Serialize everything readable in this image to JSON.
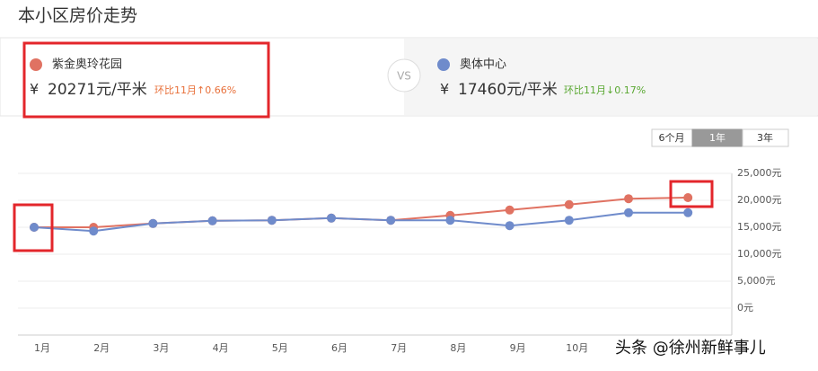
{
  "header": {
    "title": "本小区房价走势"
  },
  "compare": {
    "vs": "VS",
    "items": [
      {
        "currency": "¥",
        "price": "20271元/平米",
        "change": "环比11月↑0.66%"
      },
      {
        "currency": "¥",
        "price": "17460元/平米",
        "change": "环比11月↓0.17%"
      }
    ]
  },
  "range_buttons": [
    "6个月",
    "1年",
    "3年"
  ],
  "watermark": "头条 @徐州新鲜事儿",
  "chart_data": {
    "type": "line",
    "categories": [
      "1月",
      "2月",
      "3月",
      "4月",
      "5月",
      "6月",
      "7月",
      "8月",
      "9月",
      "10月",
      null,
      null
    ],
    "series": [
      {
        "name": "紫金奥玲花园",
        "color": "#e07262",
        "values": [
          15000,
          15000,
          15700,
          16200,
          16300,
          16700,
          16300,
          17200,
          18200,
          19200,
          20300,
          20500
        ]
      },
      {
        "name": "奥体中心",
        "color": "#6f8bcb",
        "values": [
          15000,
          14300,
          15700,
          16200,
          16300,
          16700,
          16300,
          16300,
          15300,
          16300,
          17700,
          17700
        ]
      }
    ],
    "ylim": [
      -5000,
      25000
    ],
    "yticks": [
      {
        "value": 0,
        "label": "0元"
      },
      {
        "value": 5000,
        "label": "5,000元"
      },
      {
        "value": 10000,
        "label": "10,000元"
      },
      {
        "value": 15000,
        "label": "15,000元"
      },
      {
        "value": 20000,
        "label": "20,000元"
      },
      {
        "value": 25000,
        "label": "25,000元"
      }
    ],
    "grid": true
  }
}
